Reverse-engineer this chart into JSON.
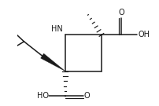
{
  "background": "#ffffff",
  "line_color": "#1a1a1a",
  "bond_width": 1.1,
  "figsize": [
    2.02,
    1.35
  ],
  "dpi": 100,
  "font_size": 7.0,
  "font_family": "Arial",
  "xlim": [
    -1.3,
    1.3
  ],
  "ylim": [
    -1.1,
    1.1
  ]
}
